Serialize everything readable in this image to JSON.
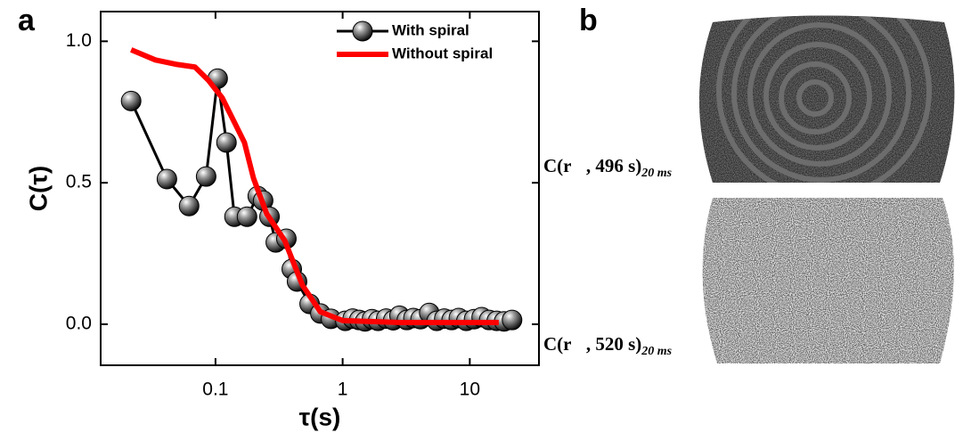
{
  "panel_labels": [
    "a",
    "b"
  ],
  "chart_data": {
    "type": "line",
    "xlabel": "τ(s)",
    "ylabel": "C(τ)",
    "xscale": "log",
    "xlim": [
      0.0125,
      35
    ],
    "xticks": [
      0.1,
      1,
      10
    ],
    "ylim": [
      -0.145,
      1.105
    ],
    "yticks": [
      {
        "value": 0,
        "label": "0.0"
      },
      0.5,
      {
        "value": 1,
        "label": "1.0"
      }
    ],
    "legend": "upper right",
    "series": [
      {
        "name": "With spiral",
        "color": "#000000",
        "marker": "sphere",
        "x": [
          0.0217,
          0.0415,
          0.062,
          0.0844,
          0.104,
          0.122,
          0.141,
          0.177,
          0.215,
          0.237,
          0.266,
          0.298,
          0.361,
          0.398,
          0.438,
          0.55,
          0.668,
          0.81,
          1.05,
          1.2,
          1.35,
          1.5,
          1.7,
          1.9,
          2.2,
          2.5,
          2.8,
          3.2,
          3.6,
          4.1,
          4.8,
          5.5,
          6.3,
          7.2,
          8.2,
          9.4,
          10.8,
          12.4,
          14.2,
          16.3,
          18.6,
          21.5
        ],
        "values": [
          0.789,
          0.513,
          0.418,
          0.522,
          0.868,
          0.642,
          0.38,
          0.38,
          0.453,
          0.437,
          0.38,
          0.289,
          0.302,
          0.195,
          0.151,
          0.072,
          0.038,
          0.019,
          0.012,
          0.02,
          0.015,
          0.01,
          0.018,
          0.012,
          0.02,
          0.014,
          0.03,
          0.015,
          0.022,
          0.018,
          0.04,
          0.012,
          0.02,
          0.015,
          0.022,
          0.012,
          0.018,
          0.025,
          0.015,
          0.012,
          0.01,
          0.015
        ]
      },
      {
        "name": "Without spiral",
        "color": "#ff0000",
        "marker": "none",
        "x": [
          0.0217,
          0.0337,
          0.05,
          0.069,
          0.088,
          0.113,
          0.144,
          0.169,
          0.199,
          0.253,
          0.35,
          0.483,
          0.668,
          1,
          2.86,
          16.9
        ],
        "values": [
          0.97,
          0.934,
          0.918,
          0.909,
          0.862,
          0.8,
          0.705,
          0.642,
          0.516,
          0.39,
          0.296,
          0.138,
          0.044,
          0.013,
          0.006,
          0.006
        ]
      }
    ]
  },
  "images": [
    {
      "main": "C(r⃗, 496 s)",
      "sub": "20 ms"
    },
    {
      "main": "C(r⃗, 520 s)",
      "sub": "20 ms"
    }
  ]
}
